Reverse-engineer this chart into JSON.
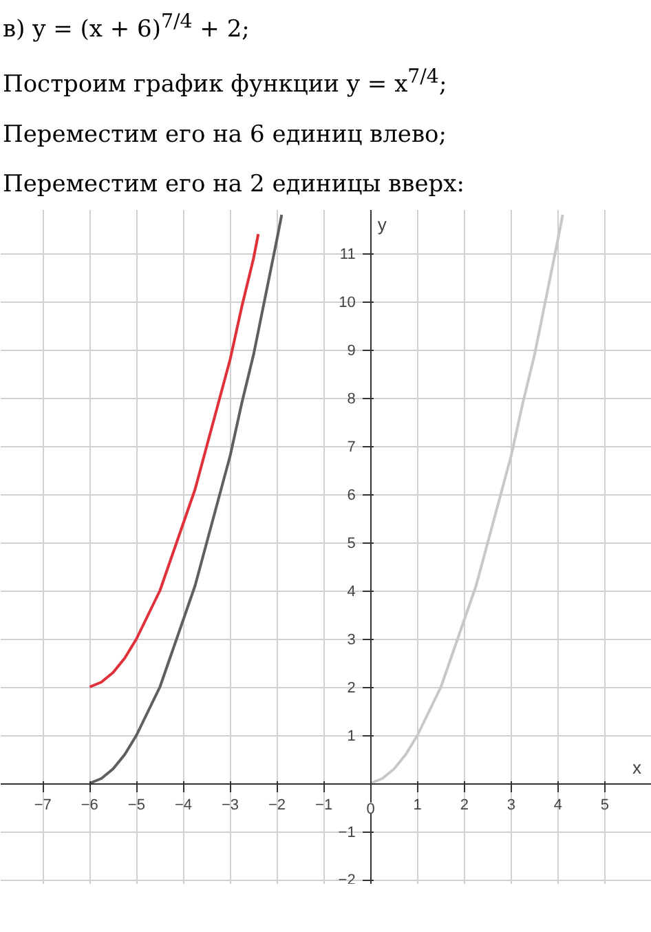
{
  "chart_data": {
    "type": "line",
    "title": "в) y = (x + 6)$^{7/4}$ + 2;",
    "annotations": [
      "Построим график функции y = x$^{7/4}$;",
      "Переместим его на 6 единиц влево;",
      "Переместим его на 2 единицы вверх:"
    ],
    "xlabel": "x",
    "ylabel": "y",
    "series": [
      {
        "color": "#c8c8c8",
        "x": [
          0,
          0.25,
          0.5,
          0.75,
          1,
          1.25,
          1.5,
          1.75,
          2,
          2.25,
          2.5,
          2.75,
          3,
          3.25,
          3.5,
          3.75,
          4,
          4.1
        ],
        "values": [
          0,
          0.1,
          0.3,
          0.6,
          1,
          1.5,
          2,
          2.7,
          3.4,
          4.1,
          5,
          5.9,
          6.8,
          7.9,
          8.9,
          10.1,
          11.3,
          11.8
        ]
      },
      {
        "color": "#5f5f5f",
        "x": [
          -6,
          -5.75,
          -5.5,
          -5.25,
          -5,
          -4.75,
          -4.5,
          -4.25,
          -4,
          -3.75,
          -3.5,
          -3.25,
          -3,
          -2.75,
          -2.5,
          -2.25,
          -2,
          -1.9
        ],
        "values": [
          0,
          0.1,
          0.3,
          0.6,
          1,
          1.5,
          2,
          2.7,
          3.4,
          4.1,
          5,
          5.9,
          6.8,
          7.9,
          8.9,
          10.1,
          11.3,
          11.8
        ]
      },
      {
        "color": "#e0303a",
        "x": [
          -6,
          -5.75,
          -5.5,
          -5.25,
          -5,
          -4.75,
          -4.5,
          -4.25,
          -4,
          -3.75,
          -3.5,
          -3.25,
          -3,
          -2.75,
          -2.5,
          -2.4
        ],
        "values": [
          2,
          2.1,
          2.3,
          2.6,
          3,
          3.5,
          4,
          4.7,
          5.4,
          6.1,
          7,
          7.9,
          8.8,
          9.9,
          10.9,
          11.4
        ]
      }
    ],
    "xlim": [
      -7.9,
      6
    ],
    "ylim": [
      -2.1,
      11.9
    ],
    "xticks": [
      {
        "value": -7,
        "label": "−7"
      },
      {
        "value": -6,
        "label": "−6"
      },
      {
        "value": -5,
        "label": "−5"
      },
      {
        "value": -4,
        "label": "−4"
      },
      {
        "value": -3,
        "label": "−3"
      },
      {
        "value": -2,
        "label": "−2"
      },
      {
        "value": -1,
        "label": "−1"
      },
      0,
      1,
      2,
      3,
      4,
      5
    ],
    "yticks": [
      {
        "value": -2,
        "label": "−2"
      },
      {
        "value": -1,
        "label": "−1"
      },
      1,
      2,
      3,
      4,
      5,
      6,
      7,
      8,
      9,
      10,
      11
    ],
    "grid": true,
    "marker": "none",
    "line_style": "solid"
  }
}
